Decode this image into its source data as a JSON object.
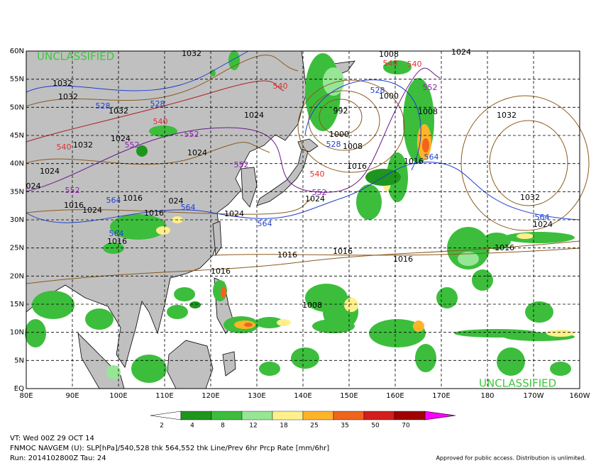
{
  "map": {
    "lat_labels": [
      "60N",
      "55N",
      "50N",
      "45N",
      "40N",
      "35N",
      "30N",
      "25N",
      "20N",
      "15N",
      "10N",
      "5N",
      "EQ"
    ],
    "lon_labels": [
      "80E",
      "90E",
      "100E",
      "110E",
      "120E",
      "130E",
      "140E",
      "150E",
      "160E",
      "170E",
      "180",
      "170W",
      "160W"
    ],
    "classification_top": "UNCLASSIFIED",
    "classification_bottom": "UNCLASSIFIED",
    "contour_labels": [
      {
        "text": "1032",
        "color": "#000"
      },
      {
        "text": "1032",
        "color": "#000"
      },
      {
        "text": "1032",
        "color": "#000"
      },
      {
        "text": "528",
        "color": "#1f3fd0"
      },
      {
        "text": "528",
        "color": "#1f3fd0"
      },
      {
        "text": "1032",
        "color": "#000"
      },
      {
        "text": "540",
        "color": "#e03030"
      },
      {
        "text": "1024",
        "color": "#000"
      },
      {
        "text": "552",
        "color": "#9020b0"
      },
      {
        "text": "1024",
        "color": "#000"
      },
      {
        "text": "552",
        "color": "#9020b0"
      },
      {
        "text": "540",
        "color": "#e03030"
      },
      {
        "text": "1032",
        "color": "#000"
      },
      {
        "text": "1024",
        "color": "#000"
      },
      {
        "text": "1024",
        "color": "#000"
      },
      {
        "text": "552",
        "color": "#9020b0"
      },
      {
        "text": "540",
        "color": "#e03030"
      },
      {
        "text": "992",
        "color": "#000"
      },
      {
        "text": "1000",
        "color": "#000"
      },
      {
        "text": "1008",
        "color": "#000"
      },
      {
        "text": "528",
        "color": "#1f3fd0"
      },
      {
        "text": "528",
        "color": "#1f3fd0"
      },
      {
        "text": "1000",
        "color": "#000"
      },
      {
        "text": "1008",
        "color": "#000"
      },
      {
        "text": "552",
        "color": "#9020b0"
      },
      {
        "text": "540",
        "color": "#e03030"
      },
      {
        "text": "540",
        "color": "#e03030"
      },
      {
        "text": "1008",
        "color": "#000"
      },
      {
        "text": "1016",
        "color": "#000"
      },
      {
        "text": "540",
        "color": "#e03030"
      },
      {
        "text": "552",
        "color": "#9020b0"
      },
      {
        "text": "1024",
        "color": "#000"
      },
      {
        "text": "1016",
        "color": "#000"
      },
      {
        "text": "564",
        "color": "#1f3fd0"
      },
      {
        "text": "1032",
        "color": "#000"
      },
      {
        "text": "1032",
        "color": "#000"
      },
      {
        "text": "564",
        "color": "#1f3fd0"
      },
      {
        "text": "1024",
        "color": "#000"
      },
      {
        "text": "1016",
        "color": "#000"
      },
      {
        "text": "1016",
        "color": "#000"
      },
      {
        "text": "1016",
        "color": "#000"
      },
      {
        "text": "1016",
        "color": "#000"
      },
      {
        "text": "1016",
        "color": "#000"
      },
      {
        "text": "1008",
        "color": "#000"
      },
      {
        "text": "1024",
        "color": "#000"
      },
      {
        "text": "564",
        "color": "#1f3fd0"
      },
      {
        "text": "564",
        "color": "#1f3fd0"
      },
      {
        "text": "1016",
        "color": "#000"
      },
      {
        "text": "024",
        "color": "#000"
      },
      {
        "text": "1016",
        "color": "#000"
      },
      {
        "text": "1016",
        "color": "#000"
      },
      {
        "text": "1024",
        "color": "#000"
      },
      {
        "text": "564",
        "color": "#1f3fd0"
      },
      {
        "text": "564",
        "color": "#1f3fd0"
      },
      {
        "text": "1016",
        "color": "#000"
      },
      {
        "text": "552",
        "color": "#9020b0"
      },
      {
        "text": "024",
        "color": "#000"
      },
      {
        "text": "1024",
        "color": "#000"
      }
    ]
  },
  "colorbar": {
    "ticks": [
      2,
      4,
      8,
      12,
      18,
      25,
      35,
      50,
      70
    ],
    "colors": [
      "#1e961e",
      "#3cbe3c",
      "#96e696",
      "#fff08c",
      "#ffb428",
      "#f0641e",
      "#d21e1e",
      "#a00000"
    ],
    "over_color": "#ff00ff"
  },
  "footer": {
    "valid_time": "VT: Wed 00Z 29 OCT 14",
    "product": "FNMOC NAVGEM (U): SLP[hPa]/540,528 thk 564,552 thk Line/Prev 6hr Prcp Rate [mm/6hr]",
    "run": "Run: 2014102800Z Tau: 24",
    "release": "Approved for public access. Distribution is unlimited."
  }
}
